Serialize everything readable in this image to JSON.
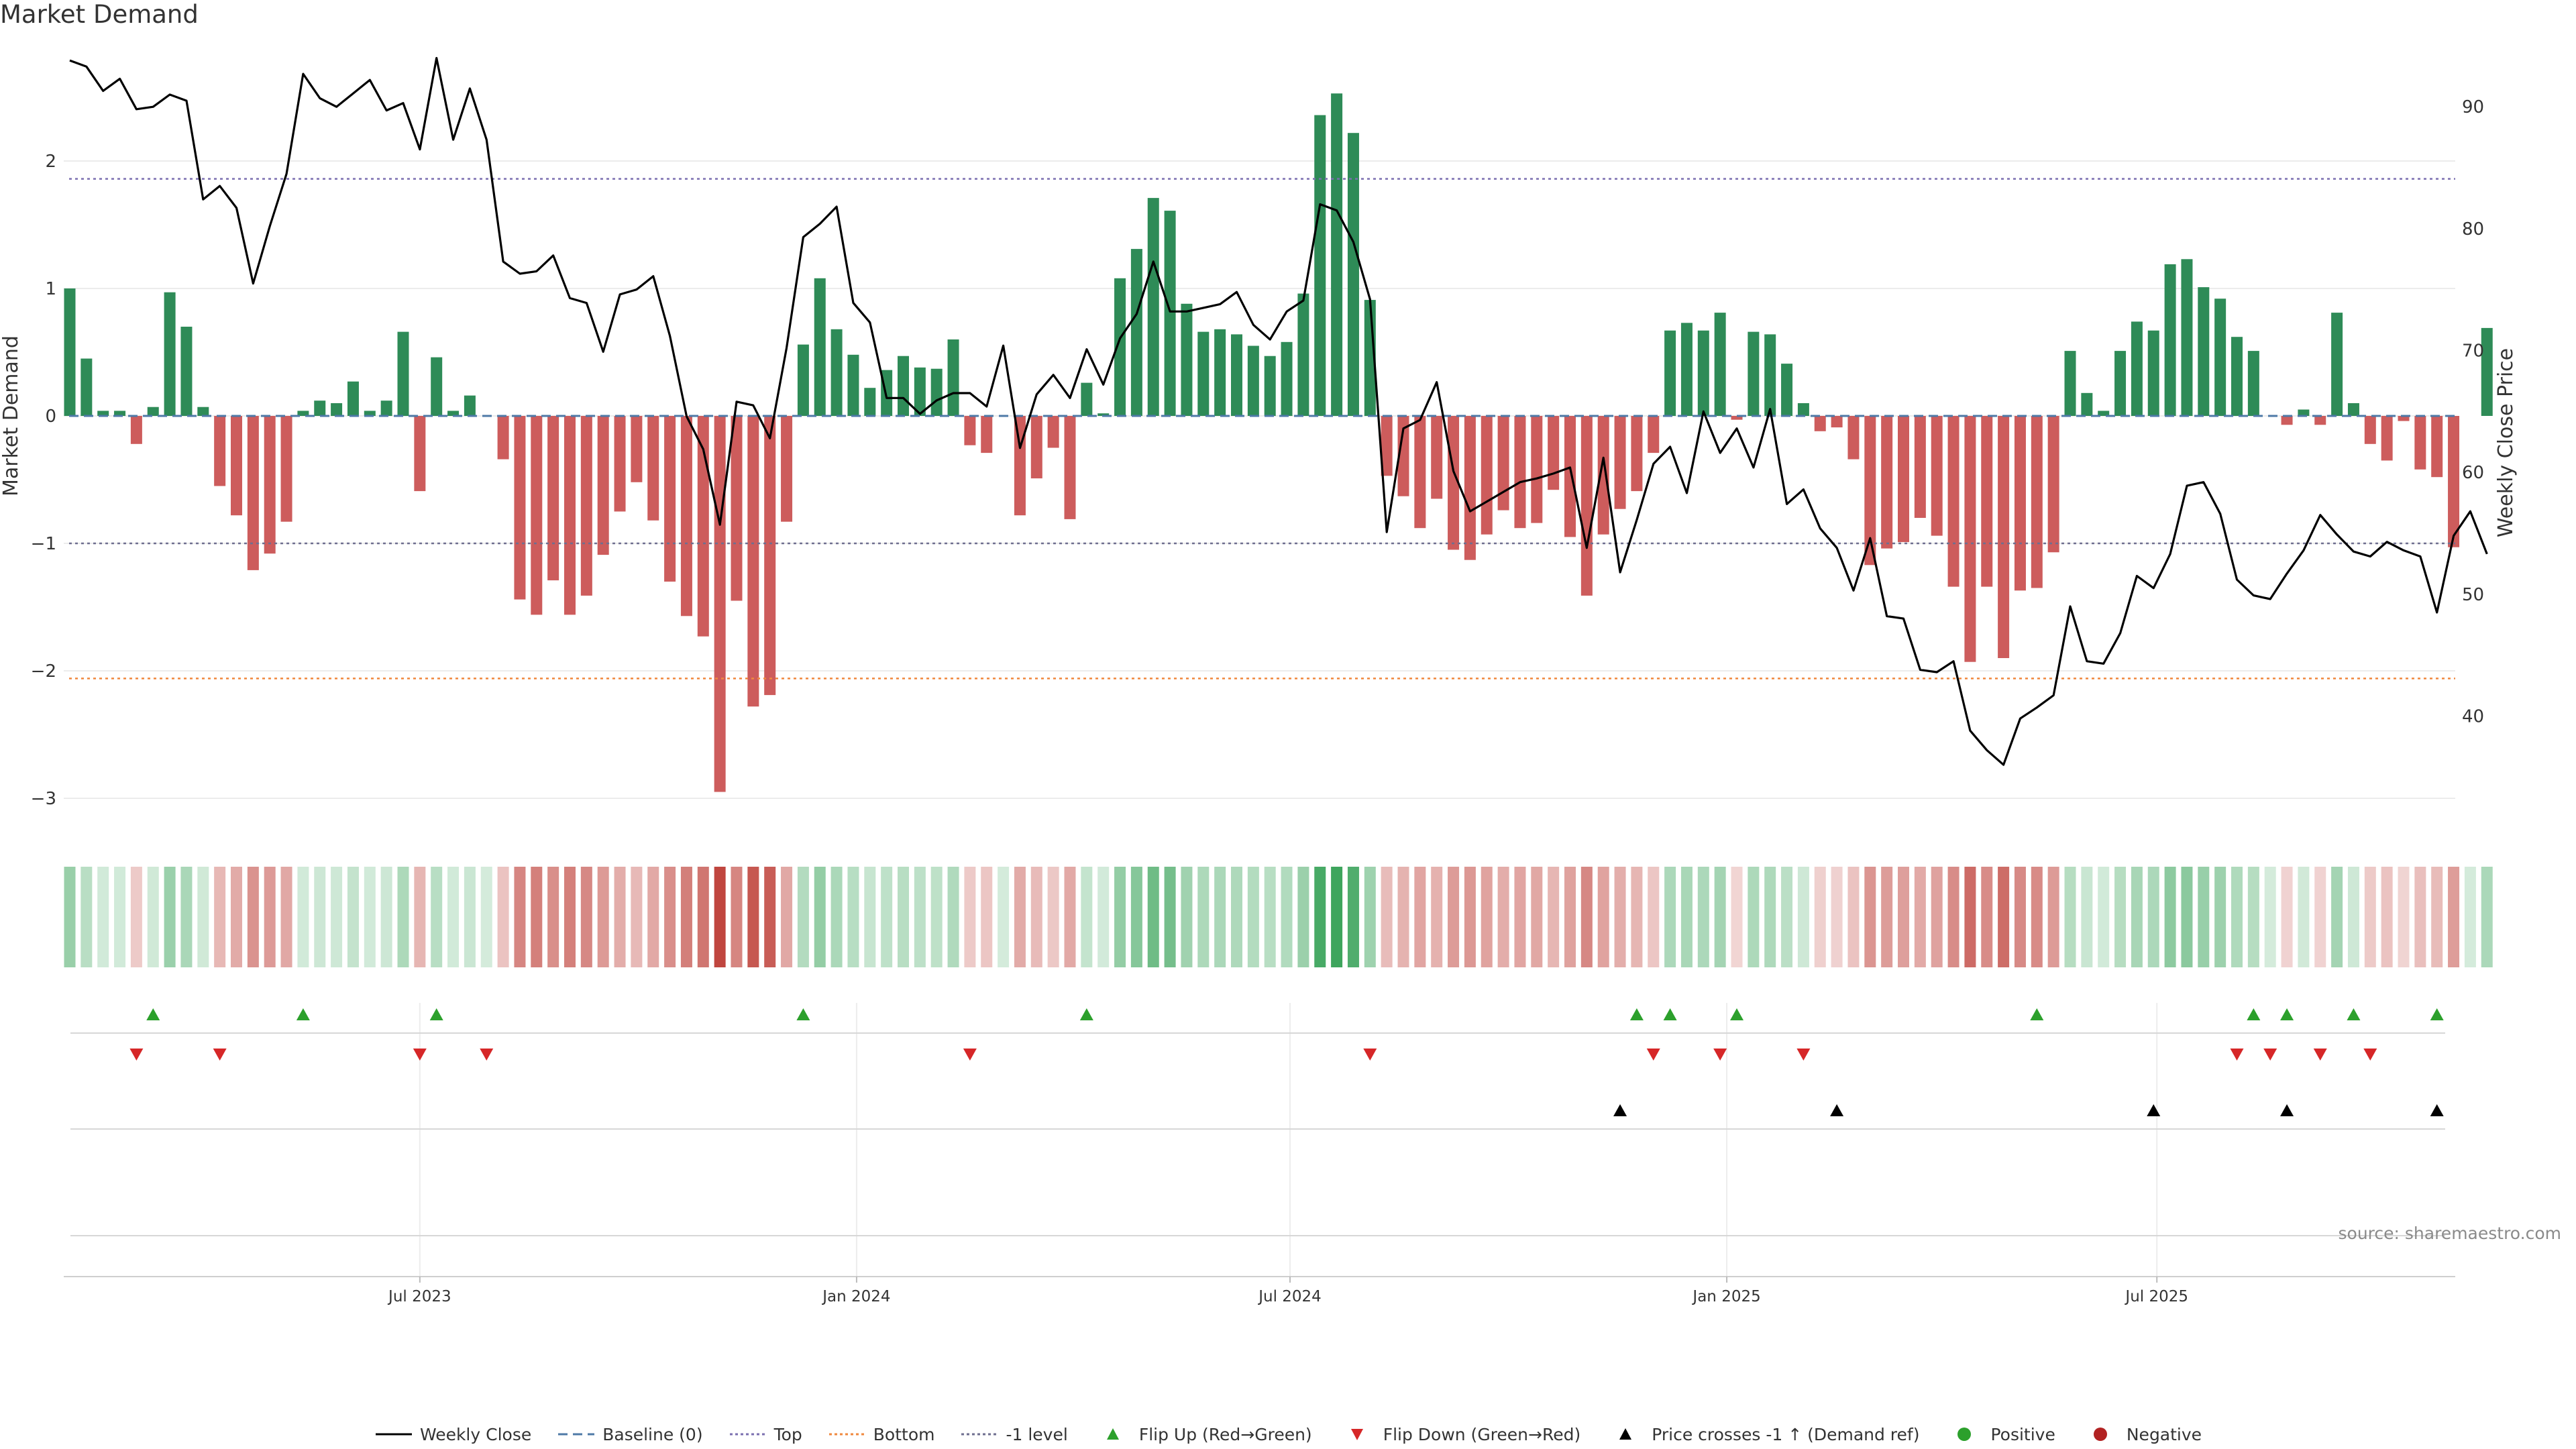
{
  "title": "Market Demand",
  "source": "source: sharemaestro.com",
  "chart_data": {
    "type": "bar+line",
    "n": 144,
    "demand": [
      1.0,
      0.45,
      0.04,
      0.04,
      -0.22,
      0.07,
      0.97,
      0.7,
      0.07,
      -0.55,
      -0.78,
      -1.21,
      -1.08,
      -0.83,
      0.04,
      0.12,
      0.1,
      0.27,
      0.04,
      0.12,
      0.66,
      -0.59,
      0.46,
      0.04,
      0.16,
      0.0,
      -0.34,
      -1.44,
      -1.56,
      -1.29,
      -1.56,
      -1.41,
      -1.09,
      -0.75,
      -0.52,
      -0.82,
      -1.3,
      -1.57,
      -1.73,
      -2.95,
      -1.45,
      -2.28,
      -2.19,
      -0.83,
      0.56,
      1.08,
      0.68,
      0.48,
      0.22,
      0.36,
      0.47,
      0.38,
      0.37,
      0.6,
      -0.23,
      -0.29,
      0.0,
      -0.78,
      -0.49,
      -0.25,
      -0.81,
      0.26,
      0.02,
      1.08,
      1.31,
      1.71,
      1.61,
      0.88,
      0.66,
      0.68,
      0.64,
      0.55,
      0.47,
      0.58,
      0.96,
      2.36,
      2.53,
      2.22,
      0.91,
      -0.47,
      -0.63,
      -0.88,
      -0.65,
      -1.05,
      -1.13,
      -0.93,
      -0.74,
      -0.88,
      -0.84,
      -0.58,
      -0.95,
      -1.41,
      -0.93,
      -0.73,
      -0.59,
      -0.29,
      0.67,
      0.73,
      0.67,
      0.81,
      -0.03,
      0.66,
      0.64,
      0.41,
      0.1,
      -0.12,
      -0.09,
      -0.34,
      -1.17,
      -1.04,
      -0.99,
      -0.8,
      -0.94,
      -1.34,
      -1.93,
      -1.34,
      -1.9,
      -1.37,
      -1.35,
      -1.07,
      0.51,
      0.18,
      0.04,
      0.51,
      0.74,
      0.67,
      1.19,
      1.23,
      1.01,
      0.92,
      0.62,
      0.51,
      0.0,
      -0.07,
      0.05,
      -0.07,
      0.81,
      0.1,
      -0.22,
      -0.35,
      -0.04,
      -0.42,
      -0.48,
      -1.03,
      0.0,
      0.69
    ],
    "weekly_close": [
      93.8,
      93.3,
      91.3,
      92.3,
      89.8,
      90.0,
      91.0,
      90.5,
      82.4,
      83.5,
      81.7,
      75.5,
      80.2,
      84.5,
      92.7,
      90.7,
      90.0,
      91.1,
      92.2,
      89.7,
      90.3,
      86.5,
      94.0,
      87.3,
      91.5,
      87.3,
      77.3,
      76.3,
      76.5,
      77.8,
      74.3,
      73.9,
      69.9,
      74.6,
      75.0,
      76.1,
      71.2,
      64.6,
      61.9,
      55.7,
      65.8,
      65.5,
      62.8,
      70.2,
      79.3,
      80.4,
      81.8,
      73.9,
      72.3,
      66.1,
      66.1,
      64.8,
      65.9,
      66.5,
      66.5,
      65.4,
      70.4,
      62.0,
      66.4,
      68.0,
      66.1,
      70.1,
      67.2,
      71.0,
      73.0,
      77.3,
      73.2,
      73.2,
      73.5,
      73.8,
      74.8,
      72.1,
      70.9,
      73.2,
      74.1,
      82.0,
      81.5,
      78.9,
      74.2,
      55.1,
      63.6,
      64.3,
      67.4,
      60.1,
      56.8,
      57.6,
      58.4,
      59.2,
      59.5,
      59.9,
      60.4,
      53.8,
      61.2,
      51.8,
      56.1,
      60.7,
      62.1,
      58.3,
      65.0,
      61.6,
      63.6,
      60.4,
      65.2,
      57.4,
      58.6,
      55.4,
      53.8,
      50.3,
      54.6,
      48.2,
      48.0,
      43.8,
      43.6,
      44.5,
      38.8,
      37.2,
      36.0,
      39.8,
      40.7,
      41.7,
      49.0,
      44.5,
      44.3,
      46.8,
      51.5,
      50.5,
      53.3,
      58.9,
      59.2,
      56.6,
      51.2,
      49.9,
      49.6,
      51.7,
      53.6,
      56.5,
      54.9,
      53.5,
      53.1,
      54.3,
      53.6,
      53.1,
      48.5,
      54.8,
      56.8,
      53.3
    ],
    "y_left": {
      "label": "Market Demand",
      "range": [
        -3.2,
        2.75
      ],
      "ticks": [
        -3,
        -2,
        -1,
        0,
        1,
        2
      ]
    },
    "y_right": {
      "label": "Weekly Close Price",
      "range": [
        30.5,
        97.0
      ],
      "ticks": [
        40,
        50,
        60,
        70,
        80,
        90
      ]
    },
    "x_ticks": [
      {
        "label": "Jul 2023",
        "index": 21
      },
      {
        "label": "Jan 2024",
        "index": 47.2
      },
      {
        "label": "Jul 2024",
        "index": 73.2
      },
      {
        "label": "Jan 2025",
        "index": 99.4
      },
      {
        "label": "Jul 2025",
        "index": 125.2
      }
    ],
    "reference_lines": {
      "top": 1.86,
      "bottom": -2.06,
      "minus_one": -1.0,
      "baseline": 0
    },
    "flip_up_indices": [
      5,
      14,
      22,
      44,
      61,
      94,
      96,
      100,
      118,
      131,
      133,
      137,
      142
    ],
    "flip_down_indices": [
      4,
      9,
      21,
      25,
      54,
      78,
      95,
      99,
      104,
      130,
      132,
      135,
      138
    ],
    "price_cross_indices": [
      93,
      106,
      125,
      133,
      142
    ],
    "colors": {
      "positive": "#2e8b57",
      "negative": "#cd5c5c",
      "line": "#000000",
      "top": "#7b6fb0",
      "bottom": "#f0883e",
      "minus_one": "#6e6e8f",
      "baseline": "#4e79a7",
      "flip_up": "#2ca02c",
      "flip_down": "#d62728",
      "cross": "#000000",
      "legend_positive": "#2ca02c",
      "legend_negative": "#b22222"
    },
    "legend": [
      {
        "key": "line",
        "label": "Weekly Close"
      },
      {
        "key": "baseline",
        "label": "Baseline (0)"
      },
      {
        "key": "top",
        "label": "Top"
      },
      {
        "key": "bottom",
        "label": "Bottom"
      },
      {
        "key": "minus1",
        "label": "-1 level"
      },
      {
        "key": "flipup",
        "label": "Flip Up (Red→Green)"
      },
      {
        "key": "flipdown",
        "label": "Flip Down (Green→Red)"
      },
      {
        "key": "cross",
        "label": "Price crosses -1 ↑ (Demand ref)"
      },
      {
        "key": "pos",
        "label": "Positive"
      },
      {
        "key": "neg",
        "label": "Negative"
      }
    ]
  }
}
